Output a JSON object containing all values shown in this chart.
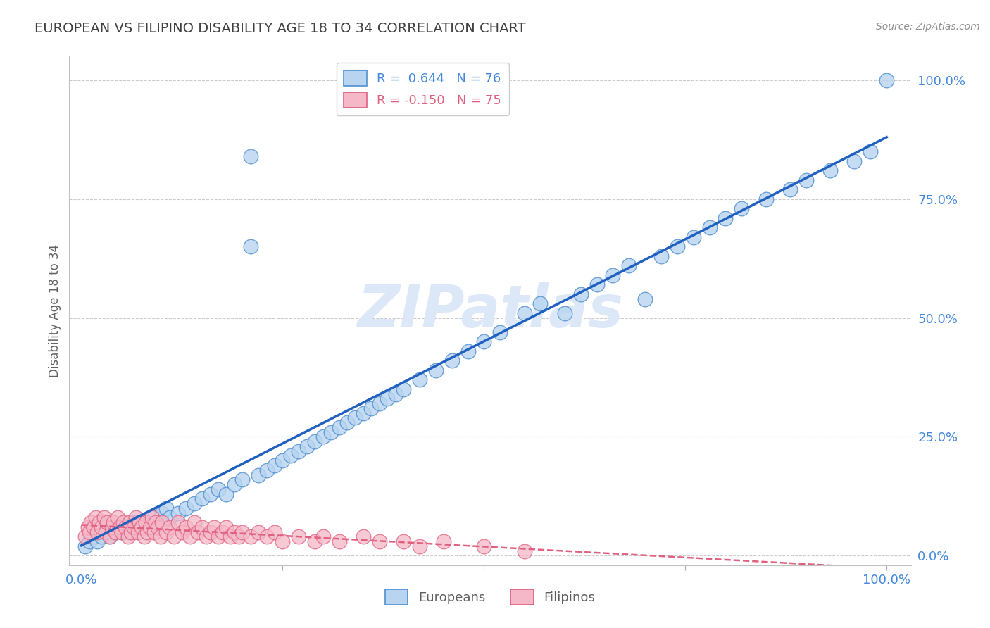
{
  "title": "EUROPEAN VS FILIPINO DISABILITY AGE 18 TO 34 CORRELATION CHART",
  "source": "Source: ZipAtlas.com",
  "ylabel": "Disability Age 18 to 34",
  "y_tick_labels": [
    "0.0%",
    "25.0%",
    "50.0%",
    "75.0%",
    "100.0%"
  ],
  "y_tick_values": [
    0.0,
    0.25,
    0.5,
    0.75,
    1.0
  ],
  "european_R": 0.644,
  "european_N": 76,
  "filipino_R": -0.15,
  "filipino_N": 75,
  "european_color": "#b8d4f0",
  "european_edge_color": "#5090d0",
  "european_line_color": "#2060c0",
  "filipino_color": "#f5b8c8",
  "filipino_edge_color": "#e06080",
  "filipino_line_color": "#e06080",
  "background_color": "#ffffff",
  "title_color": "#404040",
  "axis_label_color": "#4488dd",
  "watermark_color": "#dce8f8",
  "eu_x": [
    0.005,
    0.01,
    0.015,
    0.02,
    0.025,
    0.03,
    0.035,
    0.04,
    0.045,
    0.05,
    0.055,
    0.06,
    0.065,
    0.07,
    0.08,
    0.09,
    0.1,
    0.105,
    0.11,
    0.12,
    0.13,
    0.14,
    0.15,
    0.16,
    0.17,
    0.18,
    0.19,
    0.2,
    0.21,
    0.22,
    0.23,
    0.24,
    0.25,
    0.26,
    0.27,
    0.28,
    0.29,
    0.3,
    0.31,
    0.32,
    0.33,
    0.34,
    0.35,
    0.36,
    0.37,
    0.38,
    0.39,
    0.4,
    0.42,
    0.44,
    0.46,
    0.48,
    0.5,
    0.52,
    0.55,
    0.57,
    0.6,
    0.62,
    0.64,
    0.66,
    0.68,
    0.7,
    0.72,
    0.74,
    0.76,
    0.78,
    0.8,
    0.82,
    0.85,
    0.88,
    0.9,
    0.93,
    0.96,
    0.98,
    1.0,
    0.21
  ],
  "eu_y": [
    0.02,
    0.03,
    0.04,
    0.03,
    0.04,
    0.05,
    0.04,
    0.05,
    0.06,
    0.05,
    0.06,
    0.05,
    0.07,
    0.06,
    0.07,
    0.08,
    0.09,
    0.1,
    0.08,
    0.09,
    0.1,
    0.11,
    0.12,
    0.13,
    0.14,
    0.13,
    0.15,
    0.16,
    0.84,
    0.17,
    0.18,
    0.19,
    0.2,
    0.21,
    0.22,
    0.23,
    0.24,
    0.25,
    0.26,
    0.27,
    0.28,
    0.29,
    0.3,
    0.31,
    0.32,
    0.33,
    0.34,
    0.35,
    0.37,
    0.39,
    0.41,
    0.43,
    0.45,
    0.47,
    0.51,
    0.53,
    0.51,
    0.55,
    0.57,
    0.59,
    0.61,
    0.54,
    0.63,
    0.65,
    0.67,
    0.69,
    0.71,
    0.73,
    0.75,
    0.77,
    0.79,
    0.81,
    0.83,
    0.85,
    1.0,
    0.65
  ],
  "fi_x": [
    0.005,
    0.008,
    0.01,
    0.012,
    0.015,
    0.018,
    0.02,
    0.022,
    0.025,
    0.028,
    0.03,
    0.032,
    0.035,
    0.038,
    0.04,
    0.042,
    0.045,
    0.048,
    0.05,
    0.052,
    0.055,
    0.058,
    0.06,
    0.062,
    0.065,
    0.068,
    0.07,
    0.072,
    0.075,
    0.078,
    0.08,
    0.082,
    0.085,
    0.088,
    0.09,
    0.092,
    0.095,
    0.098,
    0.1,
    0.105,
    0.11,
    0.115,
    0.12,
    0.125,
    0.13,
    0.135,
    0.14,
    0.145,
    0.15,
    0.155,
    0.16,
    0.165,
    0.17,
    0.175,
    0.18,
    0.185,
    0.19,
    0.195,
    0.2,
    0.21,
    0.22,
    0.23,
    0.24,
    0.25,
    0.27,
    0.29,
    0.3,
    0.32,
    0.35,
    0.37,
    0.4,
    0.42,
    0.45,
    0.5,
    0.55
  ],
  "fi_y": [
    0.04,
    0.06,
    0.05,
    0.07,
    0.06,
    0.08,
    0.05,
    0.07,
    0.06,
    0.08,
    0.05,
    0.07,
    0.04,
    0.06,
    0.07,
    0.05,
    0.08,
    0.06,
    0.05,
    0.07,
    0.06,
    0.04,
    0.07,
    0.05,
    0.06,
    0.08,
    0.05,
    0.07,
    0.06,
    0.04,
    0.07,
    0.05,
    0.06,
    0.08,
    0.05,
    0.07,
    0.06,
    0.04,
    0.07,
    0.05,
    0.06,
    0.04,
    0.07,
    0.05,
    0.06,
    0.04,
    0.07,
    0.05,
    0.06,
    0.04,
    0.05,
    0.06,
    0.04,
    0.05,
    0.06,
    0.04,
    0.05,
    0.04,
    0.05,
    0.04,
    0.05,
    0.04,
    0.05,
    0.03,
    0.04,
    0.03,
    0.04,
    0.03,
    0.04,
    0.03,
    0.03,
    0.02,
    0.03,
    0.02,
    0.01
  ]
}
